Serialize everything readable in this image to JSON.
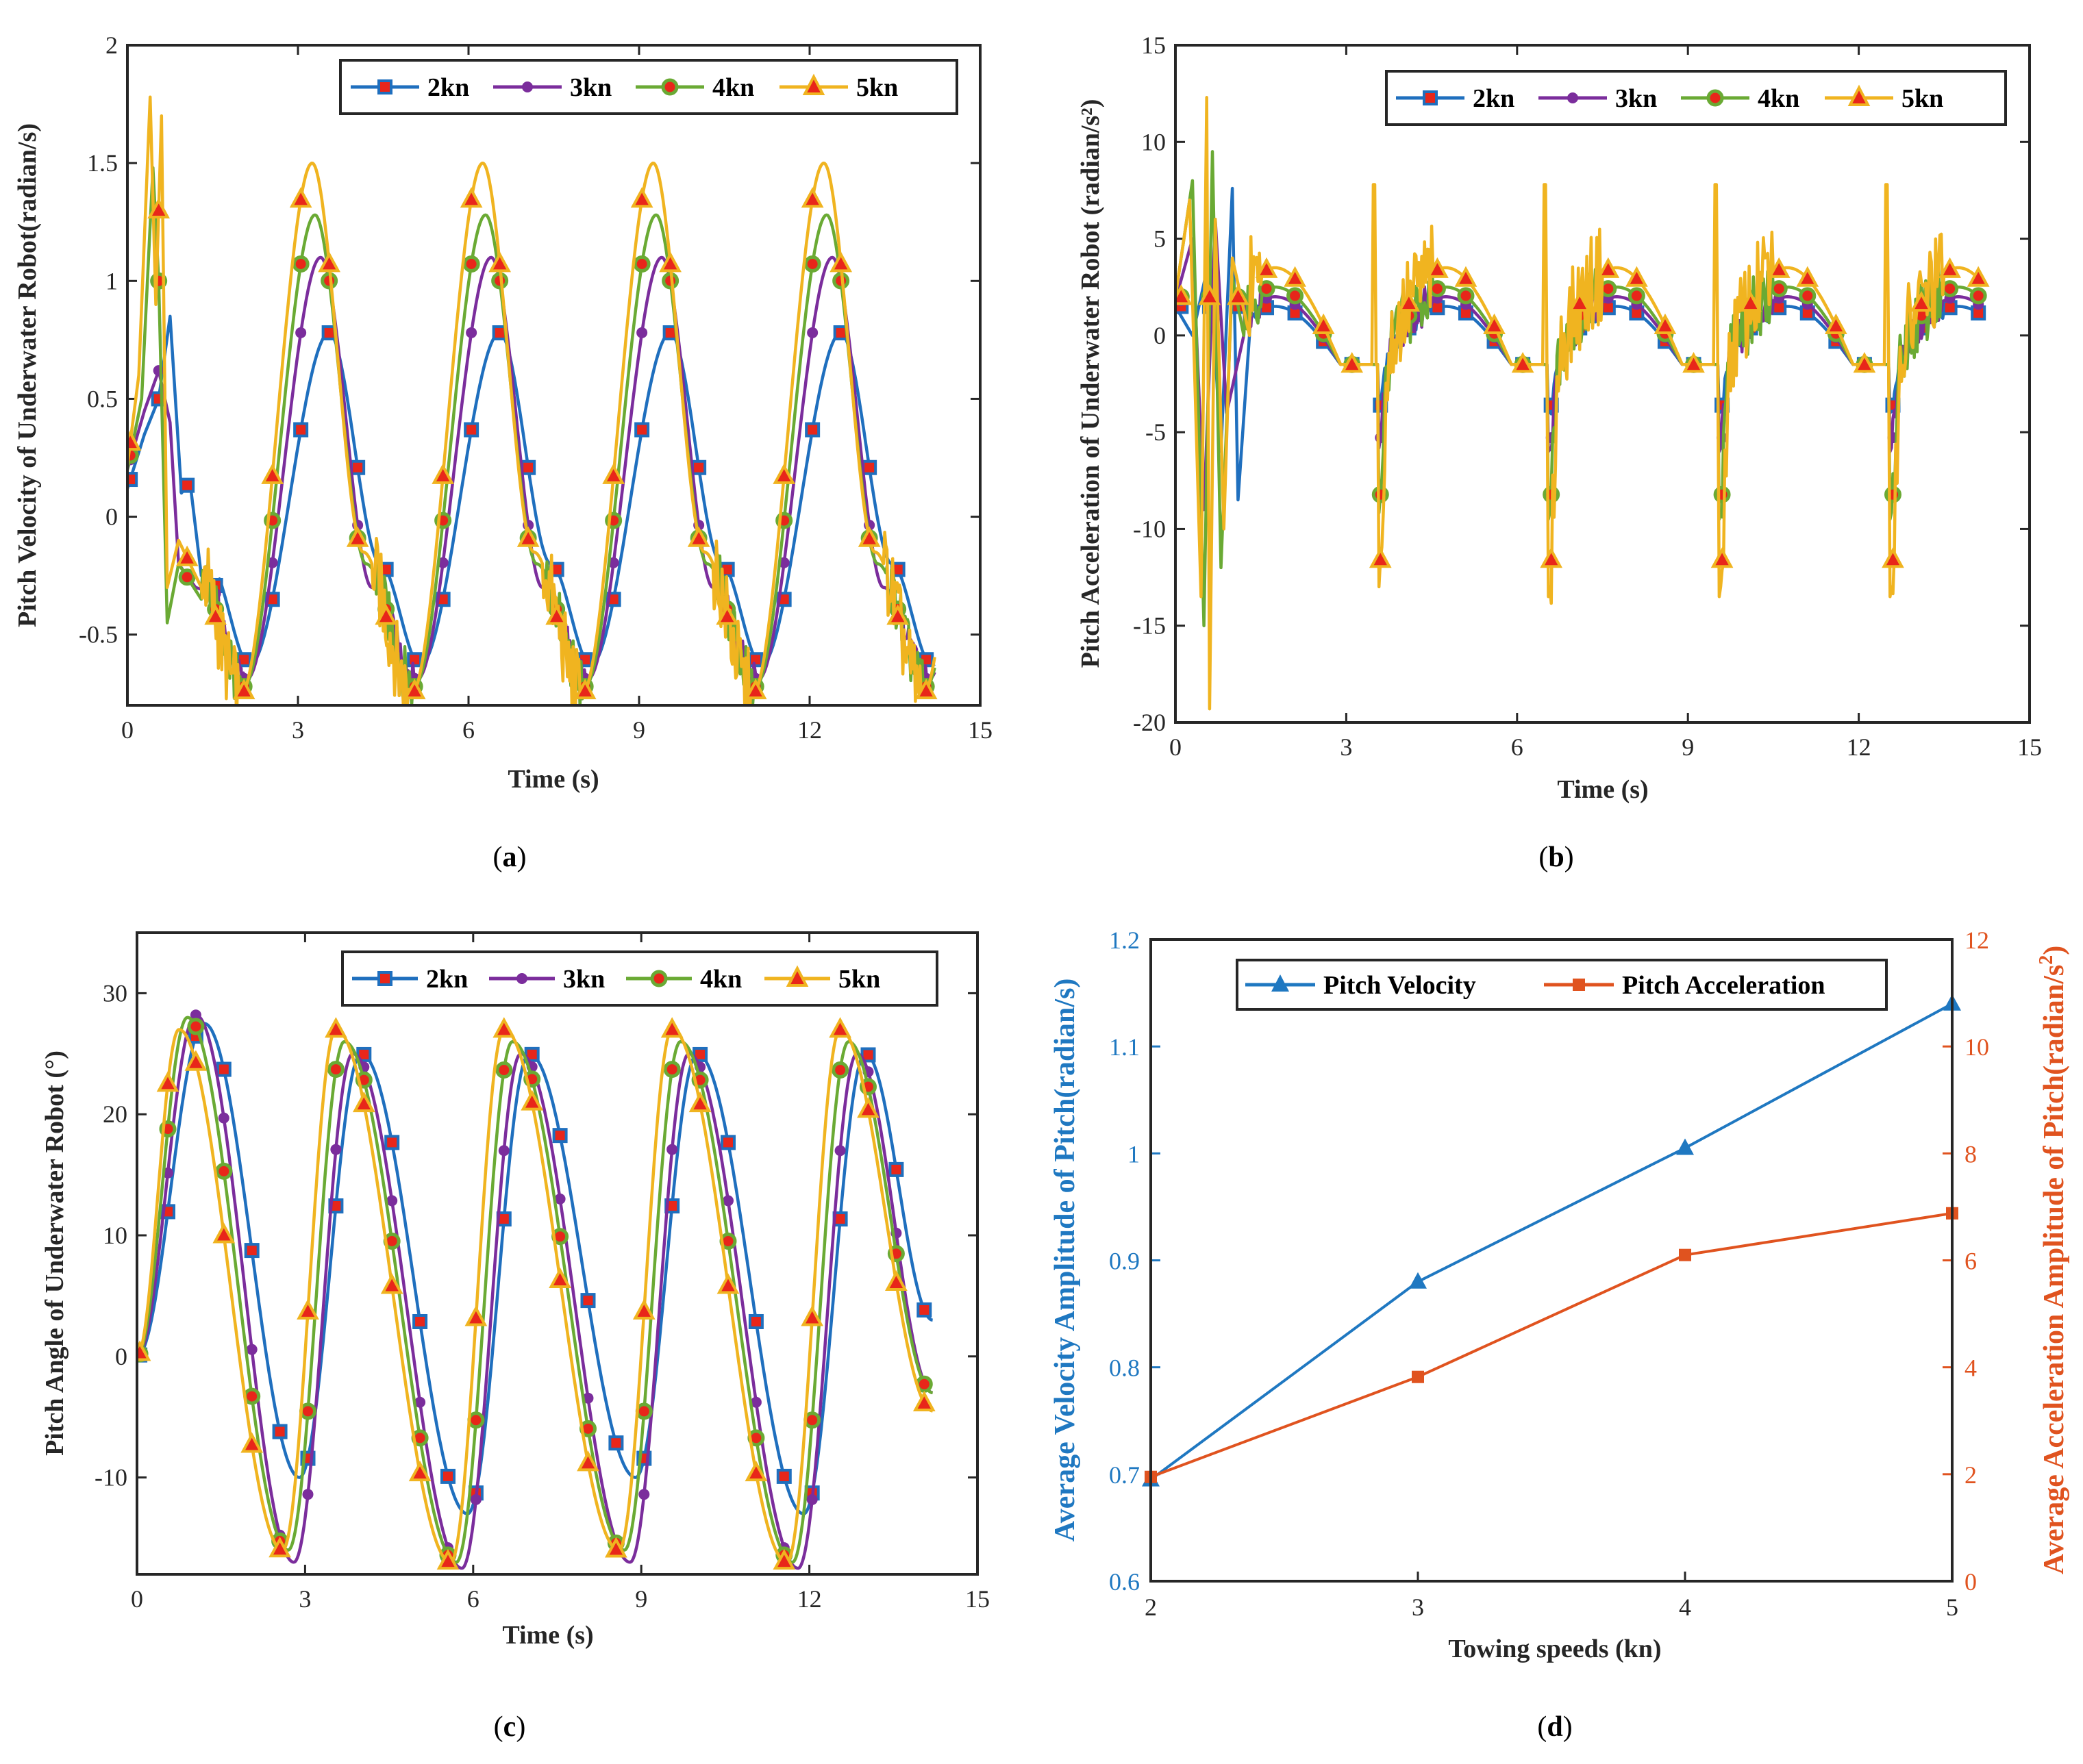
{
  "figure": {
    "panel_labels": [
      {
        "open": "(",
        "letter": "a",
        "close": ")"
      },
      {
        "open": "(",
        "letter": "b",
        "close": ")"
      },
      {
        "open": "(",
        "letter": "c",
        "close": ")"
      },
      {
        "open": "(",
        "letter": "d",
        "close": ")"
      }
    ]
  },
  "colors": {
    "2kn": "#1f6fbe",
    "3kn": "#7b2d9c",
    "4kn": "#6aaa34",
    "5kn": "#f0b420",
    "marker_fill": "#e8261a",
    "pitch_velocity": "#1f78c1",
    "pitch_acceleration": "#e0531f"
  },
  "chart_data": [
    {
      "id": "a",
      "type": "line",
      "ylabel": "Pitch Velocity of Underwater Robot(radian/s)",
      "xlabel": "Time (s)",
      "xlim": [
        0,
        15
      ],
      "ylim": [
        -0.8,
        2
      ],
      "xticks": [
        0,
        3,
        6,
        9,
        12,
        15
      ],
      "yticks": [
        -0.5,
        0,
        0.5,
        1,
        1.5,
        2
      ],
      "ytick_labels": [
        "-0.5",
        "0",
        "0.5",
        "1",
        "1.5",
        "2"
      ],
      "legend": [
        "2kn",
        "3kn",
        "4kn",
        "5kn"
      ],
      "series": [
        {
          "name": "2kn",
          "period": 3,
          "peak_t": 3.55,
          "peak": 0.78,
          "trough_t": 2.15,
          "trough": -0.63,
          "plateau": -0.2,
          "t_end": 14.2,
          "start": 0.12,
          "transient": [
            [
              0,
              0.12
            ],
            [
              0.3,
              0.35
            ],
            [
              0.55,
              0.5
            ],
            [
              0.75,
              0.85
            ],
            [
              0.95,
              0.1
            ],
            [
              1.1,
              0.15
            ],
            [
              1.3,
              -0.25
            ],
            [
              1.6,
              -0.3
            ]
          ]
        },
        {
          "name": "3kn",
          "period": 3,
          "peak_t": 3.4,
          "peak": 1.1,
          "trough_t": 2.1,
          "trough": -0.69,
          "plateau": -0.3,
          "t_end": 14.2,
          "start": 0.2,
          "transient": [
            [
              0,
              0.2
            ],
            [
              0.3,
              0.45
            ],
            [
              0.55,
              0.62
            ],
            [
              0.75,
              0.4
            ],
            [
              0.9,
              -0.2
            ],
            [
              1.2,
              -0.3
            ],
            [
              1.6,
              -0.33
            ]
          ]
        },
        {
          "name": "4kn",
          "period": 3,
          "peak_t": 3.3,
          "peak": 1.28,
          "trough_t": 2.05,
          "trough": -0.72,
          "plateau": -0.2,
          "t_end": 14.2,
          "start": 0.2,
          "transient": [
            [
              0,
              0.2
            ],
            [
              0.25,
              0.5
            ],
            [
              0.45,
              1.48
            ],
            [
              0.55,
              1.0
            ],
            [
              0.7,
              -0.45
            ],
            [
              0.9,
              -0.2
            ],
            [
              1.3,
              -0.35
            ]
          ]
        },
        {
          "name": "5kn",
          "period": 3,
          "peak_t": 3.25,
          "peak": 1.5,
          "trough_t": 2.0,
          "trough": -0.75,
          "plateau": -0.15,
          "t_end": 14.2,
          "start": 0.22,
          "transient": [
            [
              0,
              0.22
            ],
            [
              0.2,
              0.6
            ],
            [
              0.4,
              1.78
            ],
            [
              0.5,
              0.9
            ],
            [
              0.6,
              1.7
            ],
            [
              0.7,
              -0.3
            ],
            [
              0.9,
              -0.1
            ],
            [
              1.3,
              -0.3
            ]
          ]
        }
      ]
    },
    {
      "id": "b",
      "type": "line",
      "ylabel": "Pitch Acceleration of Underwater Robot (radian/s²)",
      "xlabel": "Time (s)",
      "xlim": [
        0,
        15
      ],
      "ylim": [
        -20,
        15
      ],
      "xticks": [
        0,
        3,
        6,
        9,
        12,
        15
      ],
      "yticks": [
        -20,
        -15,
        -10,
        -5,
        0,
        5,
        10,
        15
      ],
      "ytick_labels": [
        "-20",
        "-15",
        "-10",
        "-5",
        "0",
        "5",
        "10",
        "15"
      ],
      "legend": [
        "2kn",
        "3kn",
        "4kn",
        "5kn"
      ],
      "series": [
        {
          "name": "2kn",
          "period": 3,
          "peak_t": 3.0,
          "peak": 1.5,
          "dip_t": 3.6,
          "dip": -2.5,
          "t_end": 14.2,
          "noise": 0.5,
          "initial": [
            [
              0,
              1.5
            ],
            [
              0.3,
              0
            ],
            [
              0.6,
              4
            ],
            [
              0.8,
              -6
            ],
            [
              1.0,
              7.6
            ],
            [
              1.1,
              -8.5
            ],
            [
              1.3,
              0
            ]
          ]
        },
        {
          "name": "3kn",
          "period": 3,
          "peak_t": 3.0,
          "peak": 2.0,
          "dip_t": 3.5,
          "dip": -4.5,
          "t_end": 14.2,
          "noise": 1.0,
          "initial": [
            [
              0,
              1.8
            ],
            [
              0.3,
              5
            ],
            [
              0.5,
              -9
            ],
            [
              0.7,
              6
            ],
            [
              0.9,
              -4
            ],
            [
              1.2,
              0
            ]
          ]
        },
        {
          "name": "4kn",
          "period": 3,
          "peak_t": 2.9,
          "peak": 2.5,
          "dip_t": 3.4,
          "dip": -8,
          "t_end": 14.2,
          "noise": 1.8,
          "initial": [
            [
              0,
              2
            ],
            [
              0.3,
              8
            ],
            [
              0.5,
              -15
            ],
            [
              0.65,
              9.5
            ],
            [
              0.8,
              -12
            ],
            [
              1.0,
              3
            ],
            [
              1.2,
              0
            ]
          ]
        },
        {
          "name": "5kn",
          "period": 3,
          "peak_t": 2.9,
          "peak": 3.5,
          "dip_t": 3.4,
          "dip": -12,
          "t_end": 14.2,
          "noise": 2.6,
          "spike": 7.8,
          "initial": [
            [
              0,
              2
            ],
            [
              0.25,
              7
            ],
            [
              0.45,
              -13.5
            ],
            [
              0.55,
              12.3
            ],
            [
              0.6,
              -19.3
            ],
            [
              0.7,
              6
            ],
            [
              0.85,
              -10
            ],
            [
              1.0,
              4
            ],
            [
              1.3,
              0
            ]
          ]
        }
      ]
    },
    {
      "id": "c",
      "type": "line",
      "ylabel": "Pitch Angle of Underwater Robot (°)",
      "xlabel": "Time (s)",
      "xlim": [
        0,
        15
      ],
      "ylim": [
        -18,
        35
      ],
      "xticks": [
        0,
        3,
        6,
        9,
        12,
        15
      ],
      "yticks": [
        -10,
        0,
        10,
        20,
        30
      ],
      "ytick_labels": [
        "-10",
        "0",
        "10",
        "20",
        "30"
      ],
      "legend": [
        "2kn",
        "3kn",
        "4kn",
        "5kn"
      ],
      "series": [
        {
          "name": "2kn",
          "period": 3,
          "first_peak_t": 1.2,
          "first_peak": 27.5,
          "peak_t": 4.0,
          "peak": 25,
          "trough_t": 2.9,
          "trough": -10,
          "deep_trough": -13,
          "t_end": 14.2,
          "end": 3
        },
        {
          "name": "3kn",
          "period": 3,
          "first_peak_t": 1.05,
          "first_peak": 28.2,
          "peak_t": 3.85,
          "peak": 25,
          "trough_t": 2.8,
          "trough": -17,
          "deep_trough": -17.5,
          "t_end": 14.2,
          "end": -3
        },
        {
          "name": "4kn",
          "period": 3,
          "first_peak_t": 0.9,
          "first_peak": 28,
          "peak_t": 3.7,
          "peak": 26,
          "trough_t": 2.7,
          "trough": -16,
          "deep_trough": -17,
          "t_end": 14.2,
          "end": -3
        },
        {
          "name": "5kn",
          "period": 3,
          "first_peak_t": 0.75,
          "first_peak": 27,
          "peak_t": 3.55,
          "peak": 27,
          "trough_t": 2.6,
          "trough": -16,
          "deep_trough": -17,
          "t_end": 14.2,
          "end": -4.5
        }
      ]
    },
    {
      "id": "d",
      "type": "line",
      "xlabel": "Towing speeds (kn)",
      "ylabel_left": "Average Velocity Amplitude of Pitch(radian/s)",
      "ylabel_right_prefix": "Average Acceleration Amplitude of Pitch(radian/s",
      "ylabel_right_exp": "2",
      "ylabel_right_suffix": ")",
      "x": [
        2,
        3,
        4,
        5
      ],
      "xlim": [
        2,
        5
      ],
      "xticks": [
        2,
        3,
        4,
        5
      ],
      "ylim_left": [
        0.6,
        1.2
      ],
      "yticks_left": [
        0.6,
        0.7,
        0.8,
        0.9,
        1,
        1.1,
        1.2
      ],
      "ytick_labels_left": [
        "0.6",
        "0.7",
        "0.8",
        "0.9",
        "1",
        "1.1",
        "1.2"
      ],
      "ylim_right": [
        0,
        12
      ],
      "yticks_right": [
        0,
        2,
        4,
        6,
        8,
        10,
        12
      ],
      "ytick_labels_right": [
        "0",
        "2",
        "4",
        "6",
        "8",
        "10",
        "12"
      ],
      "series": [
        {
          "name": "Pitch Velocity",
          "axis": "left",
          "values": [
            0.695,
            0.88,
            1.005,
            1.14
          ]
        },
        {
          "name": "Pitch Acceleration",
          "axis": "right",
          "values": [
            1.95,
            3.82,
            6.1,
            6.88
          ]
        }
      ]
    }
  ]
}
